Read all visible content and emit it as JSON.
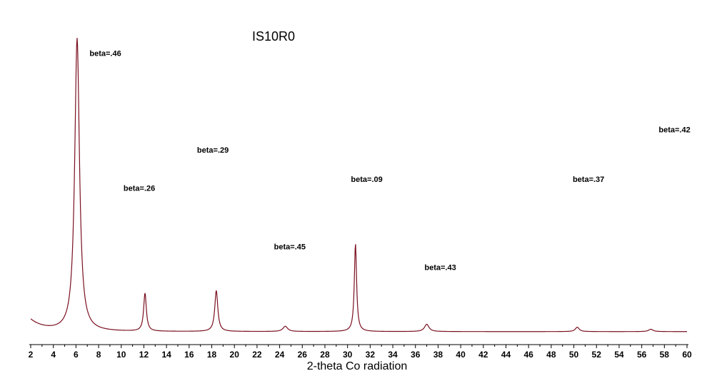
{
  "chart_data": {
    "type": "line",
    "title": "IS10R0",
    "xlabel": "2-theta Co radiation",
    "ylabel": "",
    "xlim": [
      2,
      60
    ],
    "x_ticks": [
      2,
      4,
      6,
      8,
      10,
      12,
      14,
      16,
      18,
      20,
      22,
      24,
      26,
      28,
      30,
      32,
      34,
      36,
      38,
      40,
      42,
      44,
      46,
      48,
      50,
      52,
      54,
      56,
      58,
      60
    ],
    "grid": false,
    "line_color": "#7a1020",
    "baseline": 0.02,
    "low_angle_background": {
      "amplitude": 0.04,
      "decay": 1.2
    },
    "series": [
      {
        "peaks": [
          {
            "center": 6.1,
            "height": 1.0,
            "beta": ".46"
          },
          {
            "center": 12.1,
            "height": 0.13,
            "beta": ".26"
          },
          {
            "center": 18.4,
            "height": 0.14,
            "beta": ".29"
          },
          {
            "center": 24.5,
            "height": 0.018,
            "beta": ".45"
          },
          {
            "center": 30.7,
            "height": 0.3,
            "beta": ".09"
          },
          {
            "center": 37.0,
            "height": 0.025,
            "beta": ".43"
          },
          {
            "center": 50.3,
            "height": 0.015,
            "beta": ".37"
          },
          {
            "center": 56.8,
            "height": 0.008,
            "beta": ".42"
          }
        ]
      }
    ],
    "annotations": [
      {
        "text": "beta=.46",
        "x": 7.2,
        "y": 0.96
      },
      {
        "text": "beta=.26",
        "x": 10.2,
        "y": 0.5
      },
      {
        "text": "beta=.29",
        "x": 16.7,
        "y": 0.63
      },
      {
        "text": "beta=.45",
        "x": 23.5,
        "y": 0.3
      },
      {
        "text": "beta=.09",
        "x": 30.3,
        "y": 0.53
      },
      {
        "text": "beta=.43",
        "x": 36.8,
        "y": 0.23
      },
      {
        "text": "beta=.37",
        "x": 49.9,
        "y": 0.53
      },
      {
        "text": "beta=.42",
        "x": 57.5,
        "y": 0.7
      }
    ]
  }
}
